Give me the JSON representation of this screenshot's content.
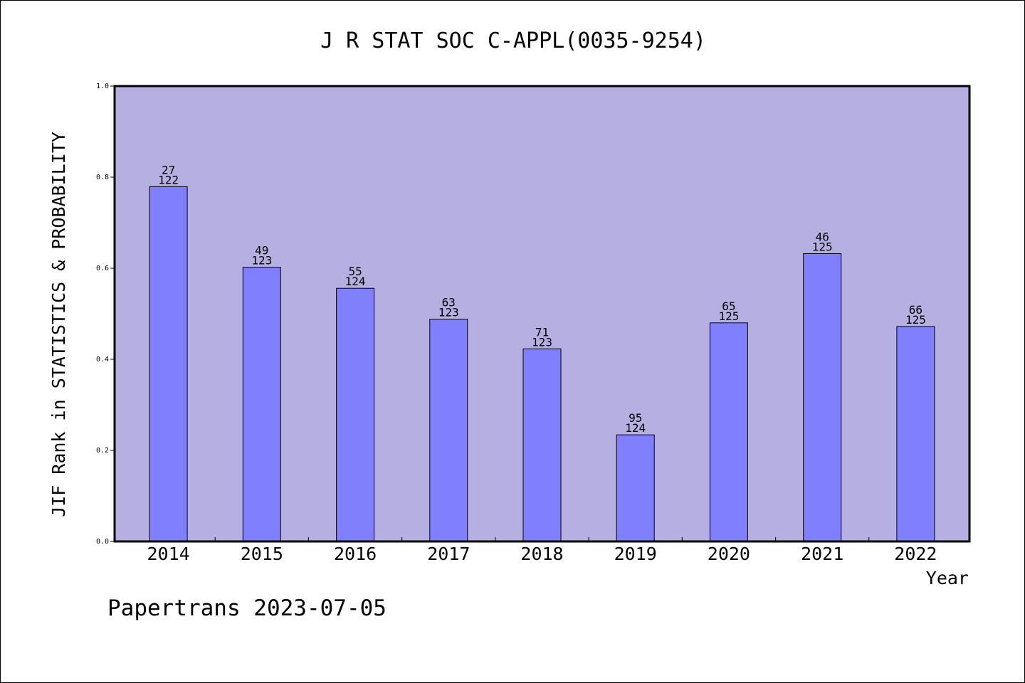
{
  "chart_data": {
    "type": "bar",
    "title": "J R STAT SOC C-APPL(0035-9254)",
    "xlabel": "Year",
    "ylabel": "JIF Rank in STATISTICS & PROBABILITY",
    "categories": [
      "2014",
      "2015",
      "2016",
      "2017",
      "2018",
      "2019",
      "2020",
      "2021",
      "2022"
    ],
    "values": [
      0.779,
      0.602,
      0.556,
      0.488,
      0.423,
      0.234,
      0.48,
      0.632,
      0.472
    ],
    "rank": [
      "27",
      "49",
      "55",
      "63",
      "71",
      "95",
      "65",
      "46",
      "66"
    ],
    "total": [
      "122",
      "123",
      "124",
      "123",
      "123",
      "124",
      "125",
      "125",
      "125"
    ],
    "ylim": [
      0,
      1.0
    ],
    "yticks": [
      "0.0",
      "0.2",
      "0.4",
      "0.6",
      "0.8",
      "1.0"
    ],
    "grid": false,
    "colors": {
      "plot_background": "#b6b0e2",
      "bar_fill": "#8080ff",
      "bar_stroke": "#000000"
    }
  },
  "footer": {
    "credit": "Papertrans 2023-07-05"
  }
}
